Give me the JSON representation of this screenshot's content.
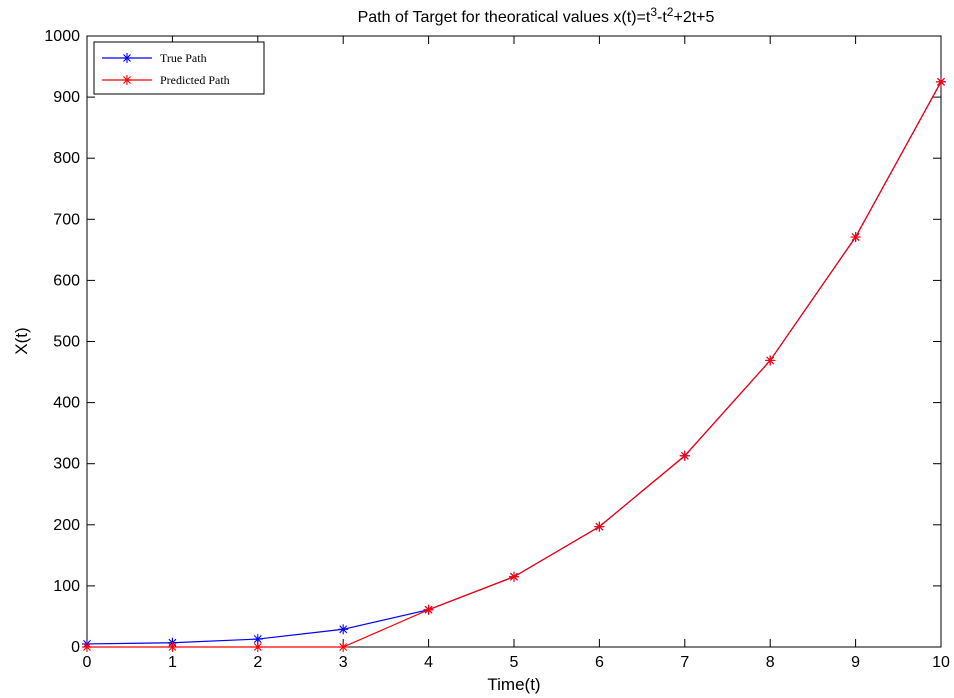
{
  "chart_data": {
    "type": "line",
    "title": {
      "prefix": "Path of Target for theoratical values x(t)=t",
      "sup1": "3",
      "mid": "-t",
      "sup2": "2",
      "suffix": "+2t+5"
    },
    "xlabel": "Time(t)",
    "ylabel": "X(t)",
    "xlim": [
      0,
      10
    ],
    "ylim": [
      0,
      1000
    ],
    "x_ticks": [
      "0",
      "1",
      "2",
      "3",
      "4",
      "5",
      "6",
      "7",
      "8",
      "9",
      "10"
    ],
    "y_ticks": [
      "0",
      "100",
      "200",
      "300",
      "400",
      "500",
      "600",
      "700",
      "800",
      "900",
      "1000"
    ],
    "grid": false,
    "legend_position": "top-left",
    "marker": "asterisk",
    "x": [
      0,
      1,
      2,
      3,
      4,
      5,
      6,
      7,
      8,
      9,
      10
    ],
    "series": [
      {
        "name": "True Path",
        "color": "#0000ff",
        "values": [
          5,
          7,
          13,
          29,
          61,
          115,
          197,
          313,
          469,
          671,
          925
        ]
      },
      {
        "name": "Predicted Path",
        "color": "#ff0000",
        "values": [
          0,
          0,
          0,
          0,
          61,
          115,
          197,
          313,
          469,
          671,
          925
        ]
      }
    ]
  }
}
